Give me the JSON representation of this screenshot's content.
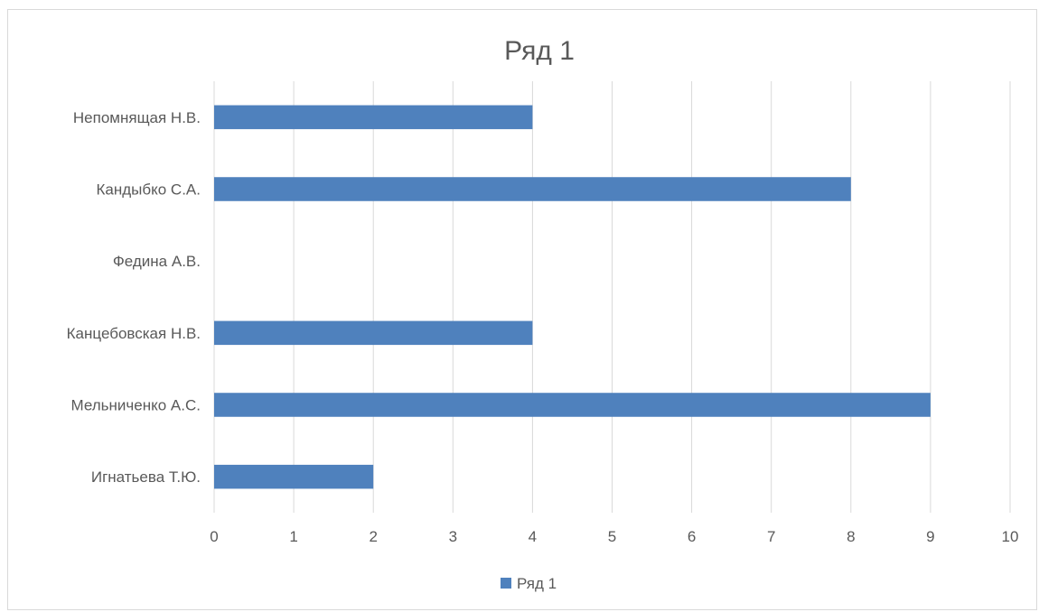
{
  "chart_data": {
    "type": "bar",
    "orientation": "horizontal",
    "title": "Ряд 1",
    "categories": [
      "Игнатьева Т.Ю.",
      "Мельниченко А.С.",
      "Канцебовская Н.В.",
      "Федина А.В.",
      "Кандыбко С.А.",
      "Непомнящая Н.В."
    ],
    "series": [
      {
        "name": "Ряд 1",
        "color": "#4f81bd",
        "values": [
          2,
          9,
          4,
          0,
          8,
          4
        ]
      }
    ],
    "xlim": [
      0,
      10
    ],
    "x_ticks": [
      "0",
      "1",
      "2",
      "3",
      "4",
      "5",
      "6",
      "7",
      "8",
      "9",
      "10"
    ],
    "grid": true,
    "legend_position": "bottom"
  }
}
